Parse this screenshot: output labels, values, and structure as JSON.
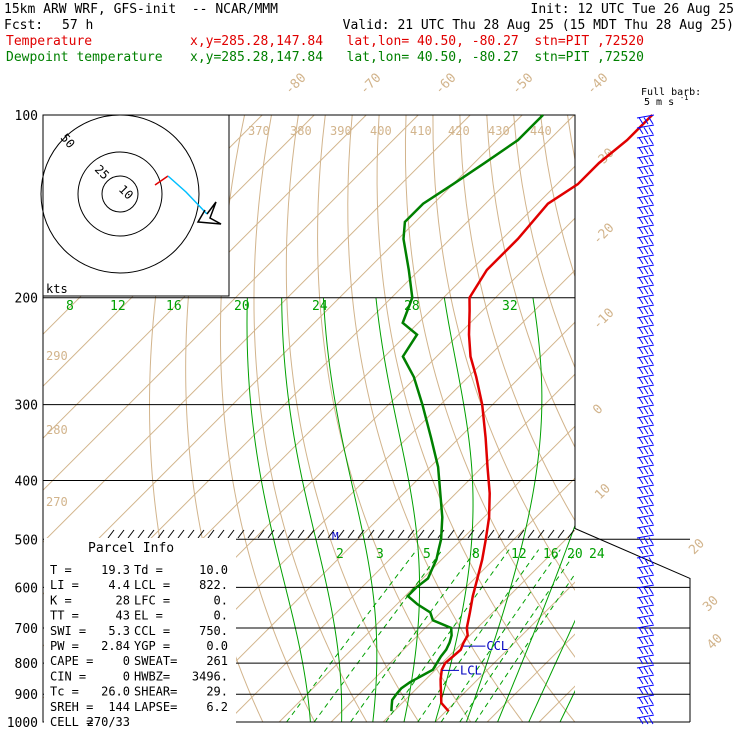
{
  "header": {
    "model": "15km ARW WRF, GFS-init  -- NCAR/MMM",
    "init": "Init: 12 UTC Tue 26 Aug 25",
    "fcst_label": "Fcst:",
    "fcst_value": "57 h",
    "valid": "Valid: 21 UTC Thu 28 Aug 25 (15 MDT Thu 28 Aug 25)",
    "temp_label": "Temperature",
    "temp_info": "x,y=285.28,147.84   lat,lon= 40.50, -80.27  stn=PIT ,72520",
    "dew_label": "Dewpoint temperature",
    "dew_info": "x,y=285.28,147.84   lat,lon= 40.50, -80.27  stn=PIT ,72520"
  },
  "barb_legend": {
    "line1": "Full barb:",
    "line2": "5 m s",
    "exp": "-1"
  },
  "hodograph": {
    "units": "kts",
    "rings": [
      "50",
      "25",
      "10"
    ]
  },
  "parcel": {
    "title": "Parcel Info",
    "rows": [
      [
        "T  =",
        "19.3",
        "Td =",
        "10.0"
      ],
      [
        "LI =",
        "4.4",
        "LCL =",
        "822."
      ],
      [
        "K  =",
        "28",
        "LFC =",
        "0."
      ],
      [
        "TT =",
        "43",
        "EL  =",
        "0."
      ],
      [
        "SWI =",
        "5.3",
        "CCL =",
        "750."
      ],
      [
        "PW =",
        "2.84",
        "YGP =",
        "0.0"
      ],
      [
        "CAPE =",
        "0",
        "SWEAT=",
        "261"
      ],
      [
        "CIN =",
        "0",
        "HWBZ=",
        "3496."
      ],
      [
        "Tc =",
        "26.0",
        "SHEAR=",
        "29."
      ],
      [
        "SREH =",
        "144",
        "LAPSE=",
        "6.2"
      ],
      [
        "CELL =",
        "270/33",
        "",
        ""
      ]
    ]
  },
  "annotations": {
    "ccl": "CCL",
    "lcl": "LCL",
    "m": "M"
  },
  "colors": {
    "temperature": "#e00000",
    "dewpoint": "#008000",
    "isotherm": "#d2b48c",
    "mixing_ratio": "#00a000",
    "barbs": "#0000ff",
    "hodo_line": "#00bfff"
  },
  "chart_data": {
    "type": "line",
    "title": "",
    "ylabel": "pressure",
    "y_scale": "log",
    "pressure_ticks": [
      "100",
      "200",
      "300",
      "400",
      "500",
      "600",
      "700",
      "800",
      "900",
      "1000"
    ],
    "isotherm_labels": [
      "-80",
      "-70",
      "-60",
      "-50",
      "-40",
      "-30",
      "-20",
      "-10",
      "0",
      "10",
      "20",
      "30",
      "40"
    ],
    "theta_labels": [
      "370",
      "380",
      "390",
      "400",
      "410",
      "420",
      "430",
      "440",
      "290",
      "280",
      "270"
    ],
    "theta_e_labels": [
      "8",
      "12",
      "16",
      "20",
      "24",
      "28",
      "32"
    ],
    "mixing_ratio_labels": [
      "2",
      "3",
      "5",
      "8",
      "12",
      "16",
      "20",
      "24"
    ],
    "series": [
      {
        "name": "Temperature",
        "pressure_hPa": [
          960,
          930,
          900,
          870,
          850,
          820,
          800,
          780,
          760,
          740,
          720,
          700,
          660,
          620,
          580,
          540,
          500,
          460,
          420,
          380,
          340,
          300,
          270,
          250,
          230,
          210,
          200,
          180,
          160,
          140,
          130,
          120,
          110,
          100
        ],
        "temperature_C": [
          20.5,
          17.5,
          15.8,
          14.0,
          12.8,
          11.2,
          10.6,
          10.8,
          11.0,
          10.2,
          9.6,
          8.0,
          5.6,
          3.0,
          0.5,
          -2.2,
          -5.4,
          -9.0,
          -13.5,
          -19.0,
          -25.0,
          -32.0,
          -38.5,
          -43.5,
          -48.0,
          -52.5,
          -55.0,
          -57.0,
          -57.0,
          -58.0,
          -56.0,
          -56.0,
          -55.0,
          -55.0
        ]
      },
      {
        "name": "Dewpoint temperature",
        "pressure_hPa": [
          960,
          940,
          920,
          900,
          880,
          860,
          850,
          840,
          820,
          800,
          780,
          760,
          740,
          720,
          700,
          680,
          660,
          640,
          620,
          600,
          580,
          560,
          540,
          520,
          500,
          460,
          420,
          380,
          340,
          300,
          270,
          250,
          230,
          220,
          200,
          180,
          160,
          150,
          140,
          130,
          120,
          110,
          100
        ],
        "temperature_C": [
          9.5,
          8.5,
          7.5,
          7.2,
          7.0,
          7.5,
          8.0,
          8.5,
          9.5,
          9.0,
          8.5,
          8.2,
          7.5,
          6.5,
          5.0,
          0.0,
          -2.0,
          -6.0,
          -9.5,
          -9.5,
          -9.0,
          -10.0,
          -11.0,
          -12.5,
          -14.0,
          -18.0,
          -23.0,
          -28.5,
          -35.5,
          -43.5,
          -50.5,
          -56.5,
          -58.0,
          -63.0,
          -66.0,
          -72.0,
          -79.0,
          -82.0,
          -82.0,
          -80.0,
          -78.0,
          -76.0,
          -76.0
        ]
      }
    ]
  }
}
